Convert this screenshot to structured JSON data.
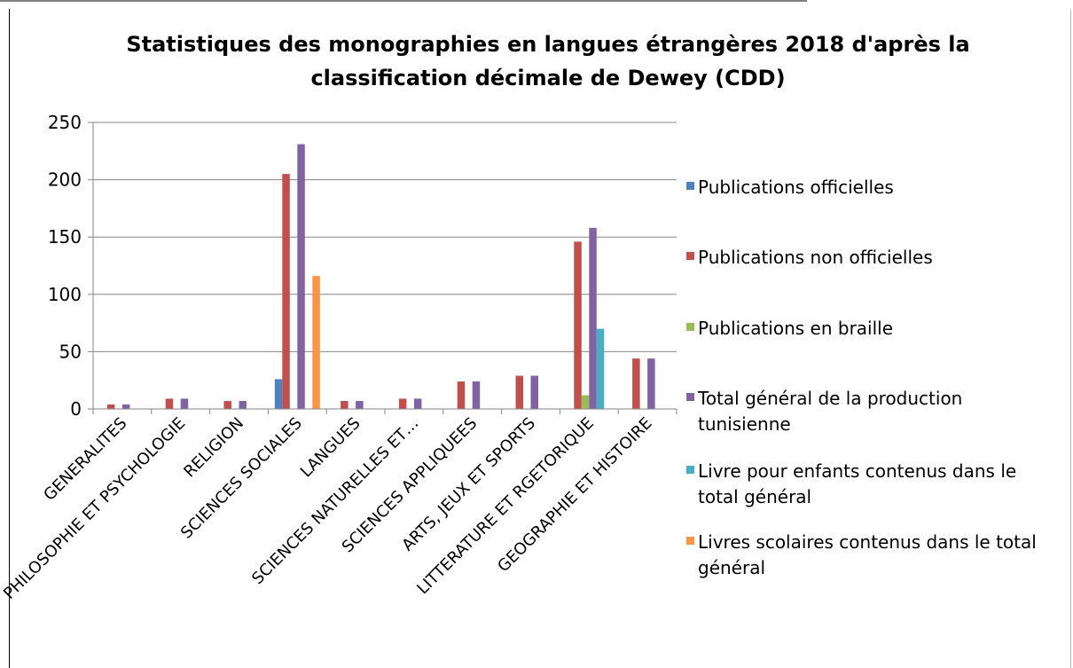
{
  "chart_data": {
    "type": "bar",
    "title": "Statistiques des monographies en langues étrangères 2018 d'après la classification décimale de Dewey (CDD)",
    "categories": [
      "GENERALITES",
      "PHILOSOPHIE ET PSYCHOLOGIE",
      "RELIGION",
      "SCIENCES SOCIALES",
      "LANGUES",
      "SCIENCES NATURELLES ET…",
      "SCIENCES APPLIQUEES",
      "ARTS, JEUX ET SPORTS",
      "LITTERATURE ET RGETORIQUE",
      "GEOGRAPHIE ET HISTOIRE"
    ],
    "series": [
      {
        "name": "Publications officielles",
        "color": "#4f81bd",
        "values": [
          0,
          0,
          0,
          26,
          0,
          0,
          0,
          0,
          0,
          0
        ]
      },
      {
        "name": "Publications non officielles",
        "color": "#c0504d",
        "values": [
          4,
          9,
          7,
          205,
          7,
          9,
          24,
          29,
          146,
          44
        ]
      },
      {
        "name": "Publications en braille",
        "color": "#9bbb59",
        "values": [
          0,
          0,
          0,
          0,
          0,
          0,
          0,
          0,
          12,
          0
        ]
      },
      {
        "name": "Total général de la production tunisienne",
        "color": "#8064a2",
        "values": [
          4,
          9,
          7,
          231,
          7,
          9,
          24,
          29,
          158,
          44
        ]
      },
      {
        "name": "Livre pour enfants contenus dans le total général",
        "color": "#4bacc6",
        "values": [
          0,
          0,
          0,
          0,
          0,
          0,
          0,
          0,
          70,
          0
        ]
      },
      {
        "name": "Livres scolaires contenus dans le total général",
        "color": "#f79646",
        "values": [
          0,
          0,
          0,
          116,
          0,
          0,
          0,
          0,
          0,
          0
        ]
      }
    ],
    "ylim": [
      0,
      250
    ],
    "yticks": [
      0,
      50,
      100,
      150,
      200,
      250
    ],
    "grid": true,
    "legend": "right"
  }
}
